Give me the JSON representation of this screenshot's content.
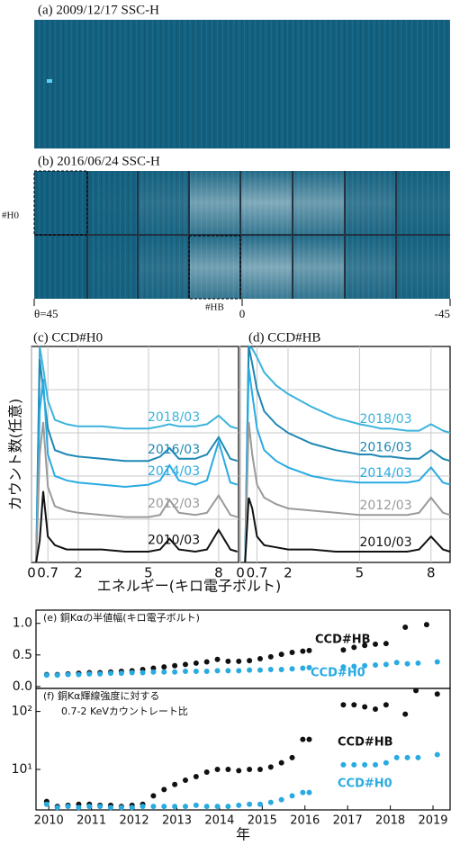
{
  "images": [
    {
      "title": "(a) 2009/12/17 SSC-H"
    },
    {
      "title": "(b) 2016/06/24 SSC-H",
      "labels": [
        "#H0",
        "#HB"
      ],
      "xlim": [
        45,
        -45
      ],
      "xticks": [
        {
          "value": 45,
          "label": "θ=45"
        },
        0,
        -45
      ]
    }
  ],
  "chart_data": [
    {
      "type": "line",
      "title": "(c) CCD#H0",
      "ylabel": "カウント数(任意)",
      "xlabel": "エネルギー(キロ電子ボルト)",
      "x": [
        0.2,
        0.35,
        0.5,
        0.7,
        1,
        1.5,
        2,
        3,
        4,
        5,
        5.5,
        5.9,
        6.3,
        7,
        7.5,
        8,
        8.5,
        8.8
      ],
      "xlim": [
        0,
        8.85
      ],
      "ylim": [
        0,
        100
      ],
      "xticks": [
        0,
        0.7,
        2,
        5,
        8
      ],
      "grid": true,
      "series": [
        {
          "name": "2018/03",
          "color": "#3bb3dc",
          "values": [
            0,
            100,
            90,
            75,
            66,
            64,
            63,
            63,
            62,
            62,
            63,
            64,
            63,
            63,
            64,
            68,
            63,
            62
          ]
        },
        {
          "name": "2016/03",
          "color": "#1e88b4",
          "values": [
            0,
            94,
            80,
            62,
            52,
            50,
            49,
            48,
            47,
            47,
            49,
            53,
            48,
            48,
            50,
            58,
            48,
            47
          ]
        },
        {
          "name": "2014/03",
          "color": "#29abe2",
          "values": [
            0,
            70,
            85,
            50,
            40,
            38,
            37,
            36,
            35,
            36,
            38,
            45,
            38,
            36,
            38,
            56,
            37,
            36
          ]
        },
        {
          "name": "2012/03",
          "color": "#9a9a9a",
          "values": [
            0,
            50,
            65,
            35,
            26,
            24,
            23,
            22,
            21,
            21,
            22,
            29,
            23,
            22,
            23,
            31,
            22,
            21
          ]
        },
        {
          "name": "2010/03",
          "color": "#111111",
          "values": [
            0,
            10,
            33,
            12,
            8,
            6,
            6,
            6,
            5,
            5,
            6,
            11,
            6,
            5,
            6,
            15,
            6,
            5
          ]
        }
      ]
    },
    {
      "type": "line",
      "title": "(d) CCD#HB",
      "x": [
        0.2,
        0.35,
        0.5,
        0.7,
        1,
        1.5,
        2,
        3,
        4,
        5,
        5.5,
        5.9,
        6.3,
        7,
        7.5,
        8,
        8.5,
        8.8
      ],
      "xlim": [
        0,
        8.8
      ],
      "ylim": [
        0,
        100
      ],
      "xticks": [
        0,
        0.7,
        2,
        5,
        8
      ],
      "grid": true,
      "series": [
        {
          "name": "2018/03",
          "color": "#3bb3dc",
          "values": [
            0,
            100,
            99,
            95,
            88,
            82,
            78,
            72,
            67,
            64,
            63,
            62,
            62,
            61,
            61,
            64,
            61,
            60
          ]
        },
        {
          "name": "2016/03",
          "color": "#1e88b4",
          "values": [
            0,
            100,
            92,
            80,
            70,
            64,
            60,
            55,
            52,
            50,
            50,
            49,
            49,
            48,
            48,
            52,
            48,
            47
          ]
        },
        {
          "name": "2014/03",
          "color": "#29abe2",
          "values": [
            0,
            90,
            78,
            62,
            52,
            47,
            44,
            40,
            38,
            37,
            37,
            37,
            37,
            37,
            38,
            44,
            37,
            36
          ]
        },
        {
          "name": "2012/03",
          "color": "#9a9a9a",
          "values": [
            0,
            65,
            50,
            36,
            30,
            27,
            25,
            24,
            23,
            22,
            22,
            22,
            22,
            22,
            23,
            30,
            23,
            22
          ]
        },
        {
          "name": "2010/03",
          "color": "#111111",
          "values": [
            0,
            30,
            25,
            12,
            8,
            7,
            6,
            6,
            5,
            5,
            5,
            5,
            5,
            5,
            6,
            12,
            6,
            5
          ]
        }
      ]
    },
    {
      "type": "scatter",
      "title": "(e) 銅Kαの半値幅(キロ電子ボルト)",
      "xlim": [
        2009.7,
        2019.4
      ],
      "ylim": [
        -0.03,
        1.21
      ],
      "yticks": [
        {
          "value": 0,
          "label": "0.0"
        },
        {
          "value": 0.5,
          "label": "0.5"
        },
        {
          "value": 1,
          "label": "1.0"
        }
      ],
      "series": [
        {
          "name": "CCD#HB",
          "color": "#111111",
          "x": [
            2009.95,
            2010.2,
            2010.45,
            2010.7,
            2010.95,
            2011.2,
            2011.45,
            2011.7,
            2011.95,
            2012.2,
            2012.45,
            2012.7,
            2012.95,
            2013.2,
            2013.45,
            2013.7,
            2013.95,
            2014.2,
            2014.45,
            2014.7,
            2014.95,
            2015.2,
            2015.45,
            2015.7,
            2015.95,
            2016.1,
            2016.9,
            2017.15,
            2017.4,
            2017.65,
            2017.9,
            2018.35,
            2018.85
          ],
          "values": [
            0.19,
            0.19,
            0.2,
            0.21,
            0.22,
            0.22,
            0.23,
            0.24,
            0.25,
            0.27,
            0.29,
            0.31,
            0.33,
            0.35,
            0.37,
            0.39,
            0.43,
            0.4,
            0.4,
            0.41,
            0.44,
            0.47,
            0.51,
            0.54,
            0.56,
            0.57,
            0.58,
            0.62,
            0.65,
            0.67,
            0.68,
            0.94,
            0.98
          ]
        },
        {
          "name": "CCD#H0",
          "color": "#29abe2",
          "x": [
            2009.95,
            2010.2,
            2010.45,
            2010.7,
            2010.95,
            2011.2,
            2011.45,
            2011.7,
            2011.95,
            2012.2,
            2012.45,
            2012.7,
            2012.95,
            2013.2,
            2013.45,
            2013.7,
            2013.95,
            2014.2,
            2014.45,
            2014.7,
            2014.95,
            2015.2,
            2015.45,
            2015.7,
            2015.95,
            2016.1,
            2016.9,
            2017.15,
            2017.4,
            2017.65,
            2017.9,
            2018.15,
            2018.4,
            2018.65,
            2019.1
          ],
          "values": [
            0.18,
            0.18,
            0.19,
            0.19,
            0.2,
            0.2,
            0.21,
            0.21,
            0.22,
            0.22,
            0.23,
            0.23,
            0.23,
            0.24,
            0.24,
            0.24,
            0.25,
            0.25,
            0.25,
            0.26,
            0.26,
            0.27,
            0.27,
            0.28,
            0.29,
            0.3,
            0.31,
            0.32,
            0.33,
            0.34,
            0.35,
            0.38,
            0.36,
            0.37,
            0.39
          ]
        }
      ]
    },
    {
      "type": "scatter",
      "log_y": true,
      "title": "(f) 銅Kα輝線強度に対する",
      "subtitle": "0.7-2 KeVカウントレート比",
      "xlabel": "年",
      "xlim": [
        2009.7,
        2019.4
      ],
      "ylim": [
        2,
        250
      ],
      "yticks": [
        {
          "value": 10,
          "label": "10¹"
        },
        {
          "value": 100,
          "label": "10²"
        }
      ],
      "xticks": [
        2010,
        2011,
        2012,
        2013,
        2014,
        2015,
        2016,
        2017,
        2018,
        2019
      ],
      "series": [
        {
          "name": "CCD#HB",
          "color": "#111111",
          "x": [
            2009.95,
            2010.2,
            2010.45,
            2010.7,
            2010.95,
            2011.2,
            2011.45,
            2011.7,
            2011.95,
            2012.2,
            2012.45,
            2012.7,
            2012.95,
            2013.2,
            2013.45,
            2013.7,
            2013.95,
            2014.2,
            2014.45,
            2014.7,
            2014.95,
            2015.2,
            2015.45,
            2015.7,
            2015.95,
            2016.1,
            2016.9,
            2017.15,
            2017.4,
            2017.65,
            2017.9,
            2018.35,
            2018.6,
            2019.1
          ],
          "values": [
            2.8,
            2.3,
            2.4,
            2.5,
            2.5,
            2.4,
            2.4,
            2.3,
            2.4,
            2.5,
            3.5,
            4.5,
            5.5,
            6.5,
            7.5,
            9,
            10,
            10,
            9.5,
            10,
            10,
            11,
            13,
            16,
            33,
            33,
            130,
            130,
            120,
            110,
            130,
            90,
            230,
            200
          ]
        },
        {
          "name": "CCD#H0",
          "color": "#29abe2",
          "x": [
            2009.95,
            2010.2,
            2010.45,
            2010.7,
            2010.95,
            2011.2,
            2011.45,
            2011.7,
            2011.95,
            2012.2,
            2012.45,
            2012.7,
            2012.95,
            2013.2,
            2013.45,
            2013.7,
            2013.95,
            2014.2,
            2014.45,
            2014.7,
            2014.95,
            2015.2,
            2015.45,
            2015.7,
            2015.95,
            2016.1,
            2016.9,
            2017.15,
            2017.4,
            2017.65,
            2017.9,
            2018.15,
            2018.4,
            2018.65,
            2019.1
          ],
          "values": [
            2.5,
            2.2,
            2.3,
            2.2,
            2.3,
            2.3,
            2.2,
            2.2,
            2.2,
            2.3,
            2.3,
            2.3,
            2.3,
            2.3,
            2.4,
            2.3,
            2.3,
            2.3,
            2.4,
            2.5,
            2.5,
            2.7,
            3,
            3.5,
            4,
            4,
            12,
            12,
            12,
            12,
            13,
            16,
            16,
            16,
            18
          ]
        }
      ]
    }
  ]
}
